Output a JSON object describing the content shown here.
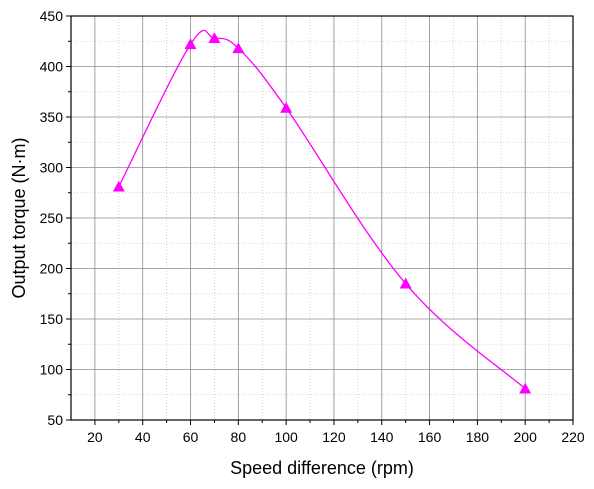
{
  "chart_data": {
    "type": "line",
    "xlabel": "Speed difference (rpm)",
    "ylabel": "Output torque (N·m)",
    "xlim": [
      10,
      220
    ],
    "ylim": [
      50,
      450
    ],
    "x_ticks": [
      20,
      40,
      60,
      80,
      100,
      120,
      140,
      160,
      180,
      200,
      220
    ],
    "y_ticks": [
      50,
      100,
      150,
      200,
      250,
      300,
      350,
      400,
      450
    ],
    "grid": true,
    "legend": "none",
    "series": [
      {
        "color": "#ff00ff",
        "marker": "triangle",
        "smooth": true,
        "points": [
          {
            "x": 30,
            "y": 281
          },
          {
            "x": 60,
            "y": 422
          },
          {
            "x": 70,
            "y": 428
          },
          {
            "x": 80,
            "y": 418
          },
          {
            "x": 100,
            "y": 359
          },
          {
            "x": 150,
            "y": 185
          },
          {
            "x": 200,
            "y": 81
          }
        ]
      }
    ]
  }
}
